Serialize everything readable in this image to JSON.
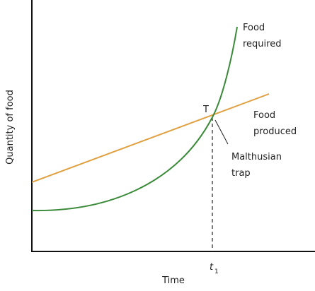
{
  "axes": {
    "y_label": "Quantity of food",
    "x_label": "Time"
  },
  "curves": {
    "food_required": {
      "lines": [
        "Food",
        "required"
      ]
    },
    "food_produced": {
      "lines": [
        "Food",
        "produced"
      ]
    }
  },
  "point": {
    "label": "T",
    "annotation": [
      "Malthusian",
      "trap"
    ]
  },
  "time_marker": {
    "symbol": "t",
    "subscript": "1"
  }
}
